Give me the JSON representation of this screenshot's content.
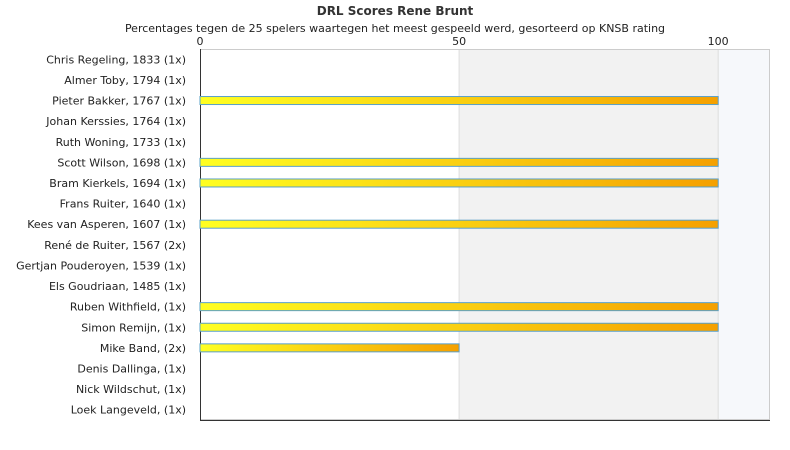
{
  "chart_data": {
    "type": "bar",
    "orientation": "horizontal",
    "title": "DRL Scores Rene Brunt",
    "subtitle": "Percentages tegen de 25 spelers waartegen het meest gespeeld werd, gesorteerd op KNSB rating",
    "xlim": [
      0,
      110
    ],
    "x_ticks": [
      0,
      50,
      100
    ],
    "grid": "vertical bands",
    "categories": [
      "Chris Regeling, 1833 (1x)",
      "Almer Toby, 1794 (1x)",
      "Pieter Bakker, 1767 (1x)",
      "Johan Kerssies, 1764 (1x)",
      "Ruth Woning, 1733 (1x)",
      "Scott Wilson, 1698 (1x)",
      "Bram Kierkels, 1694 (1x)",
      "Frans Ruiter, 1640 (1x)",
      "Kees van Asperen, 1607 (1x)",
      "René de Ruiter, 1567 (2x)",
      "Gertjan Pouderoyen, 1539 (1x)",
      "Els Goudriaan, 1485 (1x)",
      "Ruben Withfield,  (1x)",
      "Simon Remijn,  (1x)",
      "Mike Band,  (2x)",
      "Denis Dallinga,  (1x)",
      "Nick Wildschut,  (1x)",
      "Loek Langeveld,  (1x)"
    ],
    "values": [
      0,
      0,
      100,
      0,
      0,
      100,
      100,
      0,
      100,
      0,
      0,
      0,
      100,
      100,
      50,
      0,
      0,
      0
    ],
    "colors": {
      "bar_start": "#ffff22",
      "bar_end": "#f5a000",
      "bar_border": "#5aa0c8",
      "band": "#f2f2f2",
      "band_light": "#f6f8fb",
      "axis": "#333333"
    }
  }
}
